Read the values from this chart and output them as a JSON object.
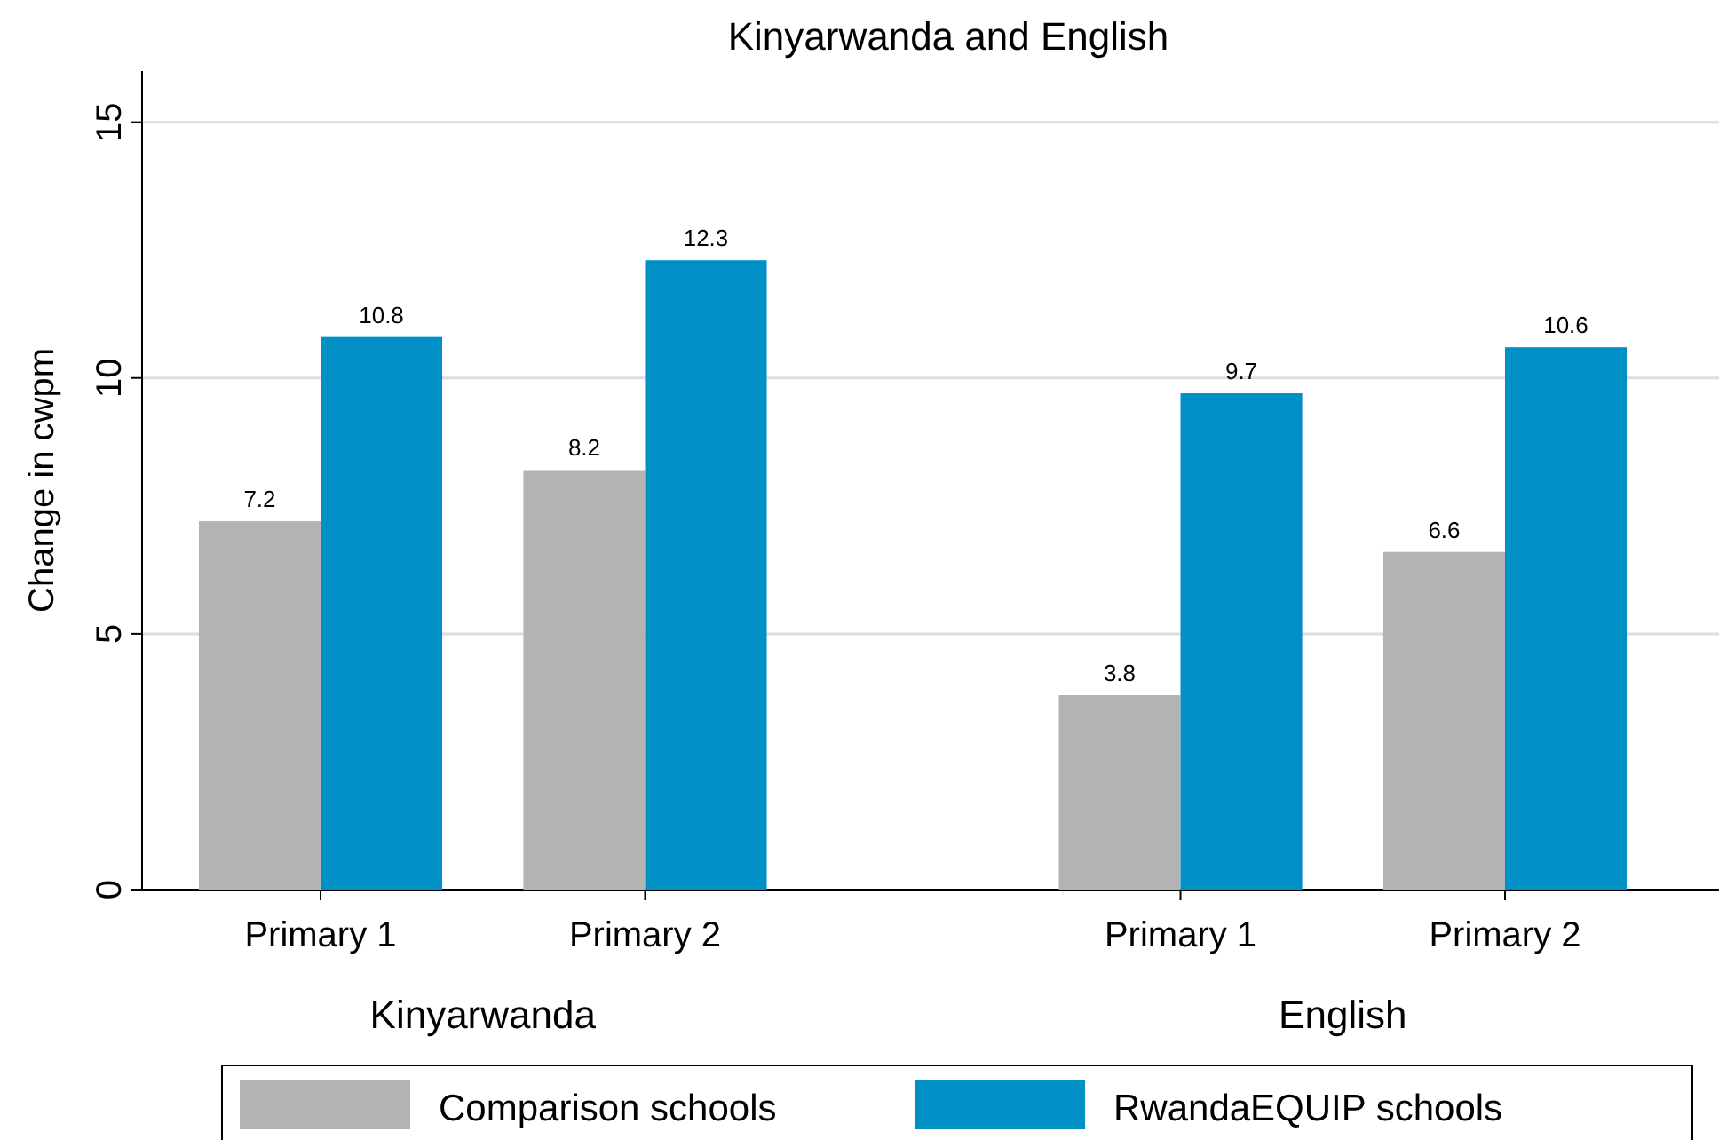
{
  "chart_data": {
    "type": "bar",
    "title": "Kinyarwanda and English",
    "ylabel": "Change in cwpm",
    "categories": [
      "Primary 1",
      "Primary 2",
      "Primary 1",
      "Primary 2"
    ],
    "series": [
      {
        "name": "Comparison schools",
        "color": "#b3b3b3",
        "values": [
          7.2,
          8.2,
          3.8,
          6.6
        ]
      },
      {
        "name": "RwandaEQUIP schools",
        "color": "#0090c6",
        "values": [
          10.8,
          12.3,
          9.7,
          10.6
        ]
      }
    ],
    "annotations": [
      "Kinyarwanda",
      "English"
    ],
    "ylim": [
      0,
      16
    ],
    "yticks": [
      0,
      5,
      10,
      15
    ],
    "grid": "y",
    "legend": "bottom",
    "data_labels": true
  }
}
